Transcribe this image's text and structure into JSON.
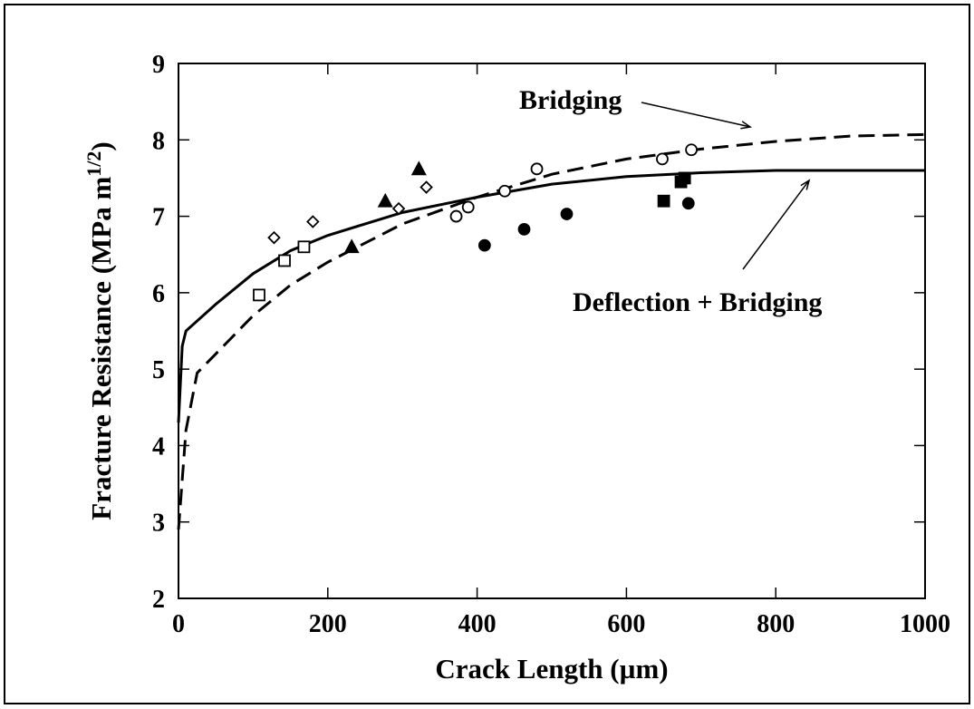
{
  "chart_data": {
    "type": "line",
    "xlabel": "Crack Length (µm)",
    "ylabel": {
      "text": "Fracture Resistance (MPa m",
      "sup": "1/2",
      "end": ")"
    },
    "xlim": [
      0,
      1000
    ],
    "xticks": [
      0,
      200,
      400,
      600,
      800,
      1000
    ],
    "ylim": [
      2,
      9
    ],
    "yticks": [
      2,
      3,
      4,
      5,
      6,
      7,
      8,
      9
    ],
    "series": [
      {
        "name": "Deflection + Bridging",
        "color": "#000000",
        "style": "solid",
        "x": [
          0,
          5,
          10,
          50,
          100,
          150,
          200,
          300,
          400,
          500,
          600,
          700,
          800,
          1000
        ],
        "values": [
          4.3,
          5.3,
          5.5,
          5.85,
          6.25,
          6.55,
          6.75,
          7.05,
          7.25,
          7.42,
          7.52,
          7.57,
          7.6,
          7.6
        ]
      },
      {
        "name": "Bridging",
        "color": "#000000",
        "style": "dash",
        "x": [
          0,
          10,
          25,
          50,
          100,
          150,
          200,
          300,
          400,
          500,
          600,
          700,
          800,
          900,
          1000
        ],
        "values": [
          2.9,
          4.2,
          4.95,
          5.2,
          5.7,
          6.1,
          6.4,
          6.9,
          7.25,
          7.55,
          7.75,
          7.88,
          7.98,
          8.05,
          8.07
        ]
      },
      {
        "marker": "diamond-open",
        "color": "#000000",
        "x": [
          128,
          180,
          295,
          332
        ],
        "values": [
          6.72,
          6.93,
          7.1,
          7.38
        ]
      },
      {
        "marker": "square-open",
        "color": "#000000",
        "x": [
          108,
          142,
          168
        ],
        "values": [
          5.97,
          6.42,
          6.6
        ]
      },
      {
        "marker": "triangle-filled",
        "color": "#000000",
        "x": [
          232,
          277,
          322
        ],
        "values": [
          6.6,
          7.2,
          7.62
        ]
      },
      {
        "marker": "circle-open",
        "color": "#000000",
        "x": [
          372,
          388,
          437,
          480,
          648,
          687
        ],
        "values": [
          7.0,
          7.12,
          7.33,
          7.62,
          7.75,
          7.87
        ]
      },
      {
        "marker": "circle-filled",
        "color": "#000000",
        "x": [
          410,
          463,
          520,
          683
        ],
        "values": [
          6.62,
          6.83,
          7.03,
          7.17
        ]
      },
      {
        "marker": "square-filled",
        "color": "#000000",
        "x": [
          650,
          673,
          678
        ],
        "values": [
          7.2,
          7.45,
          7.5
        ]
      }
    ]
  }
}
